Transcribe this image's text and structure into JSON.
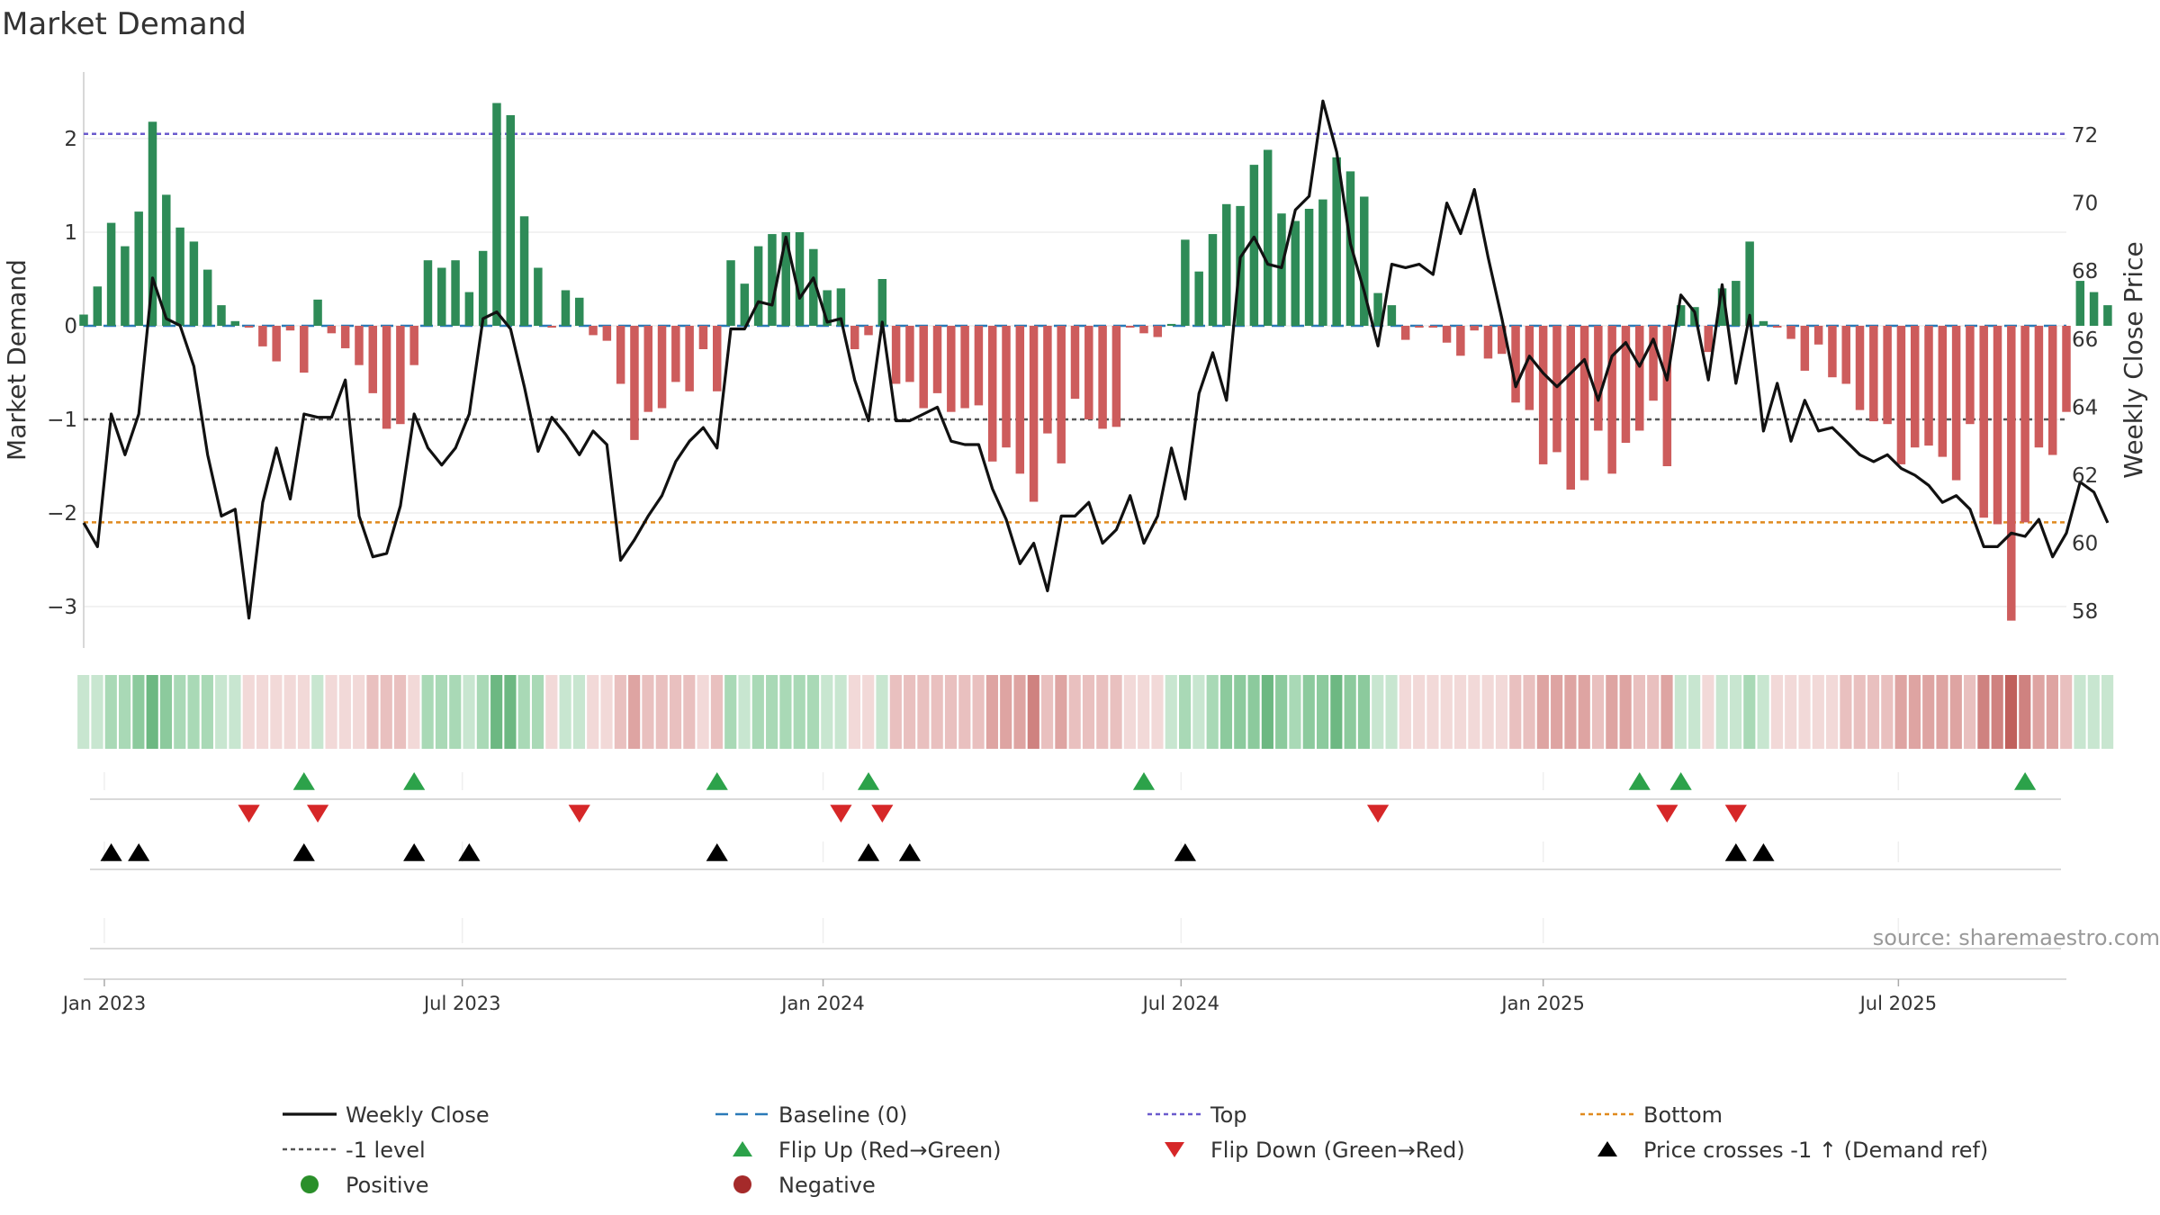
{
  "chart_data": {
    "type": "bar+line",
    "title": "Market Demand",
    "ylabel_left": "Market Demand",
    "ylabel_right": "Weekly Close Price",
    "ylim_left": [
      -3.45,
      2.6
    ],
    "ylim_right": [
      57,
      73.5
    ],
    "yticks_left": [
      {
        "v": 2,
        "label": "2"
      },
      {
        "v": 1,
        "label": "1"
      },
      {
        "v": 0,
        "label": "0"
      },
      {
        "v": -1,
        "label": "−1"
      },
      {
        "v": -2,
        "label": "−2"
      },
      {
        "v": -3,
        "label": "−3"
      }
    ],
    "yticks_right": [
      {
        "v": 72,
        "label": "72"
      },
      {
        "v": 70,
        "label": "70"
      },
      {
        "v": 68,
        "label": "68"
      },
      {
        "v": 66,
        "label": "66"
      },
      {
        "v": 64,
        "label": "64"
      },
      {
        "v": 62,
        "label": "62"
      },
      {
        "v": 60,
        "label": "60"
      },
      {
        "v": 58,
        "label": "58"
      }
    ],
    "xtick_weeks": [
      {
        "w": 1.5,
        "label": "Jan 2023"
      },
      {
        "w": 27.5,
        "label": "Jul 2023"
      },
      {
        "w": 53.7,
        "label": "Jan 2024"
      },
      {
        "w": 79.7,
        "label": "Jul 2024"
      },
      {
        "w": 106,
        "label": "Jan 2025"
      },
      {
        "w": 131.8,
        "label": "Jul 2025"
      }
    ],
    "weeks_range": [
      0,
      144
    ],
    "demand": [
      0.12,
      0.42,
      1.1,
      0.85,
      1.22,
      2.18,
      1.4,
      1.05,
      0.9,
      0.6,
      0.22,
      0.05,
      -0.02,
      -0.22,
      -0.38,
      -0.05,
      -0.5,
      0.28,
      -0.08,
      -0.24,
      -0.42,
      -0.72,
      -1.1,
      -1.05,
      -0.42,
      0.7,
      0.62,
      0.7,
      0.36,
      0.8,
      2.38,
      2.25,
      1.17,
      0.62,
      -0.02,
      0.38,
      0.3,
      -0.1,
      -0.16,
      -0.62,
      -1.22,
      -0.92,
      -0.88,
      -0.6,
      -0.7,
      -0.25,
      -0.7,
      0.7,
      0.45,
      0.85,
      0.98,
      1.0,
      1.0,
      0.82,
      0.38,
      0.4,
      -0.25,
      -0.1,
      0.5,
      -0.62,
      -0.6,
      -0.88,
      -0.72,
      -0.92,
      -0.88,
      -0.85,
      -1.45,
      -1.3,
      -1.58,
      -1.88,
      -1.15,
      -1.47,
      -0.78,
      -1.0,
      -1.1,
      -1.08,
      -0.02,
      -0.08,
      -0.12,
      0.02,
      0.92,
      0.58,
      0.98,
      1.3,
      1.28,
      1.72,
      1.88,
      1.2,
      1.12,
      1.25,
      1.35,
      1.8,
      1.65,
      1.38,
      0.35,
      0.22,
      -0.15,
      -0.02,
      -0.02,
      -0.18,
      -0.32,
      -0.05,
      -0.35,
      -0.3,
      -0.82,
      -0.9,
      -1.48,
      -1.35,
      -1.75,
      -1.65,
      -1.12,
      -1.58,
      -1.25,
      -1.12,
      -0.8,
      -1.5,
      0.22,
      0.2,
      -0.28,
      0.4,
      0.48,
      0.9,
      0.05,
      -0.02,
      -0.14,
      -0.48,
      -0.2,
      -0.55,
      -0.62,
      -0.9,
      -1.02,
      -1.05,
      -1.48,
      -1.3,
      -1.28,
      -1.4,
      -1.65,
      -1.05,
      -2.05,
      -2.12,
      -3.15,
      -2.1,
      -1.3,
      -1.38,
      -0.92,
      0.48,
      0.36,
      0.22
    ],
    "close": [
      60.6,
      59.9,
      63.8,
      62.6,
      63.8,
      67.8,
      66.6,
      66.4,
      65.2,
      62.6,
      60.8,
      61.0,
      57.8,
      61.2,
      62.8,
      61.3,
      63.8,
      63.7,
      63.7,
      64.8,
      60.8,
      59.6,
      59.7,
      61.1,
      63.8,
      62.8,
      62.3,
      62.8,
      63.8,
      66.6,
      66.8,
      66.3,
      64.6,
      62.7,
      63.7,
      63.2,
      62.6,
      63.3,
      62.9,
      59.5,
      60.1,
      60.8,
      61.4,
      62.4,
      63.0,
      63.4,
      62.8,
      66.3,
      66.3,
      67.1,
      67.0,
      69.0,
      67.2,
      67.8,
      66.5,
      66.6,
      64.8,
      63.6,
      66.5,
      63.6,
      63.6,
      63.8,
      64.0,
      63.0,
      62.9,
      62.9,
      61.6,
      60.7,
      59.4,
      60.0,
      58.6,
      60.8,
      60.8,
      61.2,
      60.0,
      60.4,
      61.4,
      60.0,
      60.8,
      62.8,
      61.3,
      64.4,
      65.6,
      64.2,
      68.4,
      69.0,
      68.2,
      68.1,
      69.8,
      70.2,
      73.0,
      71.5,
      68.8,
      67.4,
      65.8,
      68.2,
      68.1,
      68.2,
      67.9,
      70.0,
      69.1,
      70.4,
      68.4,
      66.6,
      64.6,
      65.5,
      65.0,
      64.6,
      65.0,
      65.4,
      64.2,
      65.5,
      65.9,
      65.2,
      66.0,
      64.8,
      67.3,
      66.8,
      64.8,
      67.6,
      64.7,
      66.7,
      63.3,
      64.7,
      63.0,
      64.2,
      63.3,
      63.4,
      63.0,
      62.6,
      62.4,
      62.6,
      62.2,
      62.0,
      61.7,
      61.2,
      61.4,
      61.0,
      59.9,
      59.9,
      60.3,
      60.2,
      60.7,
      59.6,
      60.3,
      61.8,
      61.5,
      60.6
    ],
    "reference_lines": [
      {
        "name": "Top",
        "value": 2.05,
        "color": "#6a5acd"
      },
      {
        "name": "-1 level",
        "value": -1.0,
        "color": "#555555"
      },
      {
        "name": "Bottom",
        "value": -2.1,
        "color": "#e08a1e"
      },
      {
        "name": "Baseline (0)",
        "value": 0,
        "color": "#2a7ab8"
      }
    ],
    "flip_up_weeks": [
      16,
      24,
      46,
      57,
      77,
      113,
      116,
      141
    ],
    "flip_down_weeks": [
      12,
      17,
      36,
      55,
      58,
      94,
      115,
      120
    ],
    "price_cross_weeks": [
      2,
      4,
      16,
      24,
      28,
      46,
      57,
      60,
      80,
      120,
      122
    ],
    "legend": [
      {
        "key": "close",
        "label": "Weekly Close"
      },
      {
        "key": "baseline",
        "label": "Baseline (0)"
      },
      {
        "key": "top",
        "label": "Top"
      },
      {
        "key": "bottom",
        "label": "Bottom"
      },
      {
        "key": "minus1",
        "label": "-1 level"
      },
      {
        "key": "flipup",
        "label": "Flip Up (Red→Green)"
      },
      {
        "key": "flipdown",
        "label": "Flip Down (Green→Red)"
      },
      {
        "key": "cross",
        "label": "Price crosses -1 ↑ (Demand ref)"
      },
      {
        "key": "positive",
        "label": "Positive"
      },
      {
        "key": "negative",
        "label": "Negative"
      }
    ],
    "source": "source: sharemaestro.com",
    "colors": {
      "positive": "#2e8b57",
      "negative": "#cd5c5c",
      "close": "#111111",
      "flip_up": "#2ca24a",
      "flip_down": "#d62728",
      "cross": "#000000",
      "positive_dot": "#2a8f2a",
      "negative_dot": "#a52a2a",
      "grid": "#eeeeee",
      "axis": "#cccccc"
    }
  }
}
